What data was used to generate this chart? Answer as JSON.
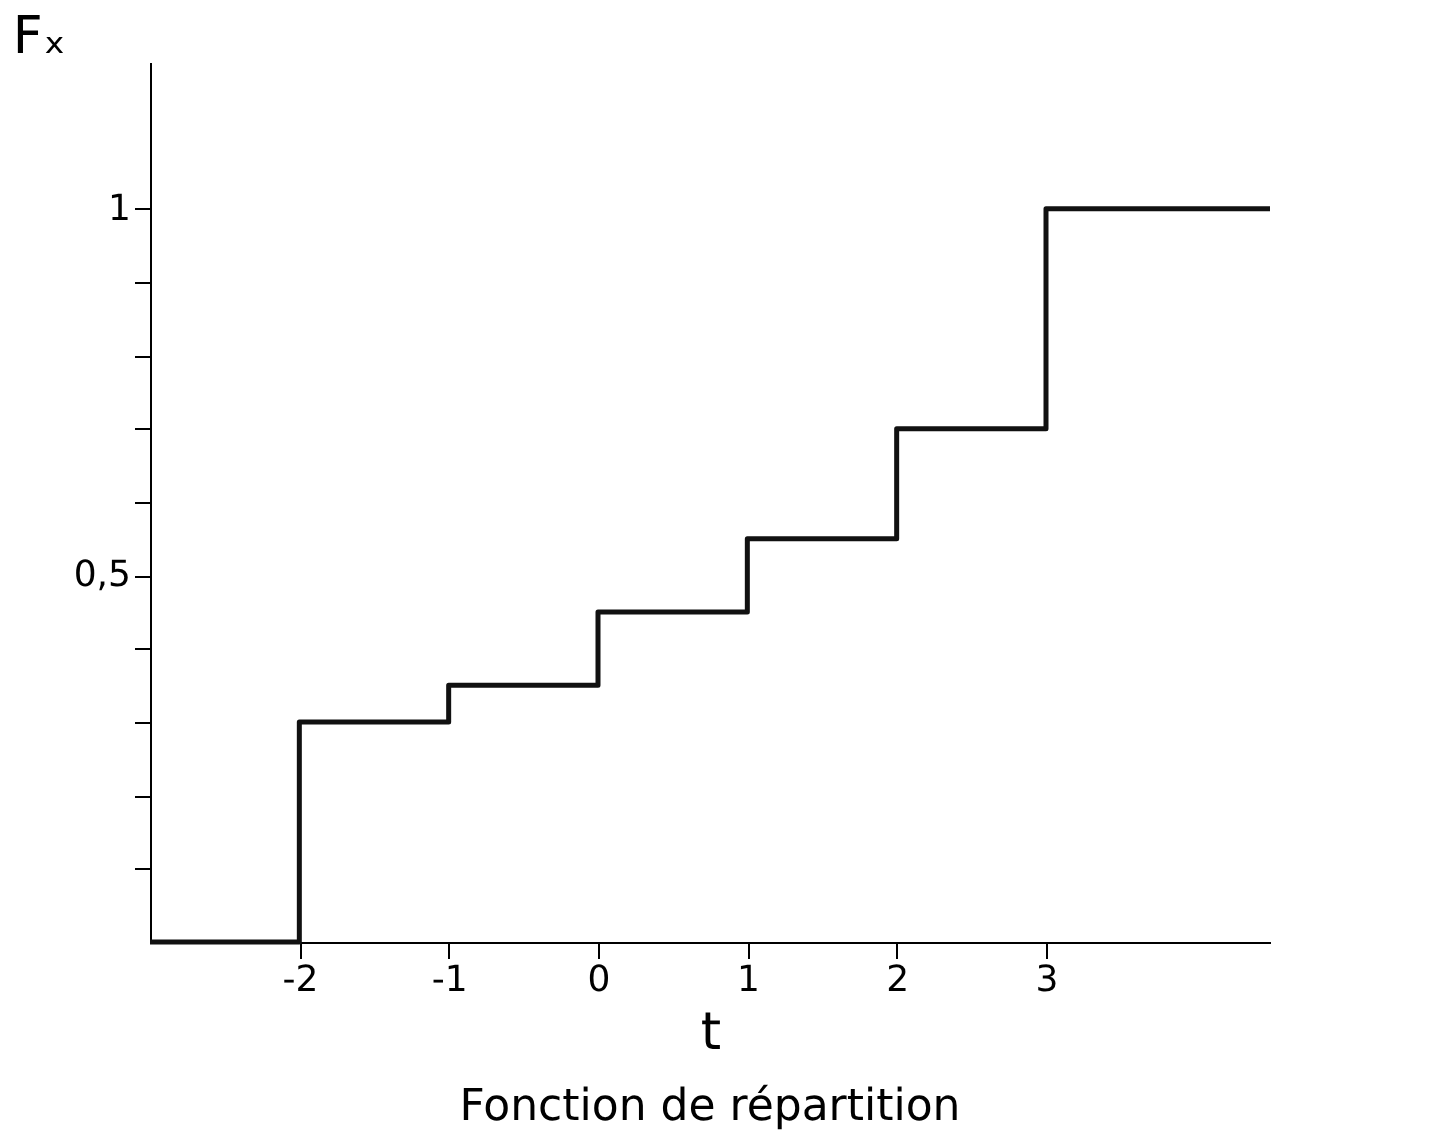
{
  "chart_data": {
    "type": "step",
    "title": "Fonction de répartition",
    "xlabel": "t",
    "ylabel": "Fₓ",
    "x": [
      -3,
      -2,
      -1,
      0,
      1,
      2,
      3,
      4.5
    ],
    "values": [
      0,
      0.3,
      0.35,
      0.45,
      0.55,
      0.7,
      1,
      1
    ],
    "color": "#111111",
    "line_style": "solid",
    "grid": false,
    "xlim": [
      -3,
      4.5
    ],
    "ylim": [
      0,
      1.2
    ],
    "xticks": [
      -2,
      -1,
      0,
      1,
      2,
      3
    ],
    "yticks": [
      {
        "value": 0.1,
        "label": null
      },
      {
        "value": 0.2,
        "label": null
      },
      {
        "value": 0.3,
        "label": null
      },
      {
        "value": 0.4,
        "label": null
      },
      {
        "value": 0.5,
        "label": "0,5"
      },
      {
        "value": 0.6,
        "label": null
      },
      {
        "value": 0.7,
        "label": null
      },
      {
        "value": 0.8,
        "label": null
      },
      {
        "value": 0.9,
        "label": null
      },
      {
        "value": 1,
        "label": "1"
      }
    ]
  }
}
